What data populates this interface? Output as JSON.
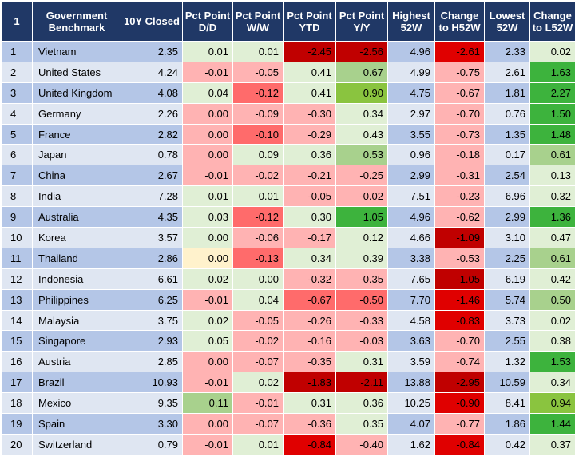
{
  "headers": [
    "1",
    "Government Benchmark",
    "10Y Closed",
    "Pct Point D/D",
    "Pct Point W/W",
    "Pct Point YTD",
    "Pct Point Y/Y",
    "Highest 52W",
    "Change to H52W",
    "Lowest 52W",
    "Change to L52W"
  ],
  "colors": {
    "header_bg": "#203866",
    "row_odd": "#b4c6e7",
    "row_even": "#dfe6f2",
    "neg_light": "#ffb3b3",
    "neg_mid": "#ff6b6b",
    "neg_strong": "#e00000",
    "neg_dark": "#c00000",
    "pos_light": "#e0efd5",
    "pos_mid": "#a8d18d",
    "pos_strong": "#8ac43f",
    "pos_dark": "#3db33d",
    "neutral": "#fff2cc"
  },
  "rows": [
    {
      "idx": "1",
      "name": "Vietnam",
      "closed": "2.35",
      "dd": "0.01",
      "ww": "0.01",
      "ytd": "-2.45",
      "yy": "-2.56",
      "high": "4.96",
      "ch_h": "-2.61",
      "low": "2.33",
      "ch_l": "0.02"
    },
    {
      "idx": "2",
      "name": "United States",
      "closed": "4.24",
      "dd": "-0.01",
      "ww": "-0.05",
      "ytd": "0.41",
      "yy": "0.67",
      "high": "4.99",
      "ch_h": "-0.75",
      "low": "2.61",
      "ch_l": "1.63"
    },
    {
      "idx": "3",
      "name": "United Kingdom",
      "closed": "4.08",
      "dd": "0.04",
      "ww": "-0.12",
      "ytd": "0.41",
      "yy": "0.90",
      "high": "4.75",
      "ch_h": "-0.67",
      "low": "1.81",
      "ch_l": "2.27"
    },
    {
      "idx": "4",
      "name": "Germany",
      "closed": "2.26",
      "dd": "0.00",
      "ww": "-0.09",
      "ytd": "-0.30",
      "yy": "0.34",
      "high": "2.97",
      "ch_h": "-0.70",
      "low": "0.76",
      "ch_l": "1.50"
    },
    {
      "idx": "5",
      "name": "France",
      "closed": "2.82",
      "dd": "0.00",
      "ww": "-0.10",
      "ytd": "-0.29",
      "yy": "0.43",
      "high": "3.55",
      "ch_h": "-0.73",
      "low": "1.35",
      "ch_l": "1.48"
    },
    {
      "idx": "6",
      "name": "Japan",
      "closed": "0.78",
      "dd": "0.00",
      "ww": "0.09",
      "ytd": "0.36",
      "yy": "0.53",
      "high": "0.96",
      "ch_h": "-0.18",
      "low": "0.17",
      "ch_l": "0.61"
    },
    {
      "idx": "7",
      "name": "China",
      "closed": "2.67",
      "dd": "-0.01",
      "ww": "-0.02",
      "ytd": "-0.21",
      "yy": "-0.25",
      "high": "2.99",
      "ch_h": "-0.31",
      "low": "2.54",
      "ch_l": "0.13"
    },
    {
      "idx": "8",
      "name": "India",
      "closed": "7.28",
      "dd": "0.01",
      "ww": "0.01",
      "ytd": "-0.05",
      "yy": "-0.02",
      "high": "7.51",
      "ch_h": "-0.23",
      "low": "6.96",
      "ch_l": "0.32"
    },
    {
      "idx": "9",
      "name": "Australia",
      "closed": "4.35",
      "dd": "0.03",
      "ww": "-0.12",
      "ytd": "0.30",
      "yy": "1.05",
      "high": "4.96",
      "ch_h": "-0.62",
      "low": "2.99",
      "ch_l": "1.36"
    },
    {
      "idx": "10",
      "name": "Korea",
      "closed": "3.57",
      "dd": "0.00",
      "ww": "-0.06",
      "ytd": "-0.17",
      "yy": "0.12",
      "high": "4.66",
      "ch_h": "-1.09",
      "low": "3.10",
      "ch_l": "0.47"
    },
    {
      "idx": "11",
      "name": "Thailand",
      "closed": "2.86",
      "dd": "0.00",
      "ww": "-0.13",
      "ytd": "0.34",
      "yy": "0.39",
      "high": "3.38",
      "ch_h": "-0.53",
      "low": "2.25",
      "ch_l": "0.61"
    },
    {
      "idx": "12",
      "name": "Indonesia",
      "closed": "6.61",
      "dd": "0.02",
      "ww": "0.00",
      "ytd": "-0.32",
      "yy": "-0.35",
      "high": "7.65",
      "ch_h": "-1.05",
      "low": "6.19",
      "ch_l": "0.42"
    },
    {
      "idx": "13",
      "name": "Philippines",
      "closed": "6.25",
      "dd": "-0.01",
      "ww": "0.04",
      "ytd": "-0.67",
      "yy": "-0.50",
      "high": "7.70",
      "ch_h": "-1.46",
      "low": "5.74",
      "ch_l": "0.50"
    },
    {
      "idx": "14",
      "name": "Malaysia",
      "closed": "3.75",
      "dd": "0.02",
      "ww": "-0.05",
      "ytd": "-0.26",
      "yy": "-0.33",
      "high": "4.58",
      "ch_h": "-0.83",
      "low": "3.73",
      "ch_l": "0.02"
    },
    {
      "idx": "15",
      "name": "Singapore",
      "closed": "2.93",
      "dd": "0.05",
      "ww": "-0.02",
      "ytd": "-0.16",
      "yy": "-0.03",
      "high": "3.63",
      "ch_h": "-0.70",
      "low": "2.55",
      "ch_l": "0.38"
    },
    {
      "idx": "16",
      "name": "Austria",
      "closed": "2.85",
      "dd": "0.00",
      "ww": "-0.07",
      "ytd": "-0.35",
      "yy": "0.31",
      "high": "3.59",
      "ch_h": "-0.74",
      "low": "1.32",
      "ch_l": "1.53"
    },
    {
      "idx": "17",
      "name": "Brazil",
      "closed": "10.93",
      "dd": "-0.01",
      "ww": "0.02",
      "ytd": "-1.83",
      "yy": "-2.11",
      "high": "13.88",
      "ch_h": "-2.95",
      "low": "10.59",
      "ch_l": "0.34"
    },
    {
      "idx": "18",
      "name": "Mexico",
      "closed": "9.35",
      "dd": "0.11",
      "ww": "-0.01",
      "ytd": "0.31",
      "yy": "0.36",
      "high": "10.25",
      "ch_h": "-0.90",
      "low": "8.41",
      "ch_l": "0.94"
    },
    {
      "idx": "19",
      "name": "Spain",
      "closed": "3.30",
      "dd": "0.00",
      "ww": "-0.07",
      "ytd": "-0.36",
      "yy": "0.35",
      "high": "4.07",
      "ch_h": "-0.77",
      "low": "1.86",
      "ch_l": "1.44"
    },
    {
      "idx": "20",
      "name": "Switzerland",
      "closed": "0.79",
      "dd": "-0.01",
      "ww": "0.01",
      "ytd": "-0.84",
      "yy": "-0.40",
      "high": "1.62",
      "ch_h": "-0.84",
      "low": "0.42",
      "ch_l": "0.37"
    }
  ],
  "highlights": {
    "0": {
      "dd": "pos_light",
      "ww": "pos_light",
      "ytd": "neg_dark",
      "yy": "neg_dark",
      "ch_h": "neg_strong",
      "ch_l": "pos_light"
    },
    "1": {
      "dd": "neg_light",
      "ww": "neg_light",
      "ytd": "pos_light",
      "yy": "pos_mid",
      "ch_h": "neg_light",
      "ch_l": "pos_dark"
    },
    "2": {
      "dd": "pos_light",
      "ww": "neg_mid",
      "ytd": "pos_light",
      "yy": "pos_strong",
      "ch_h": "neg_light",
      "ch_l": "pos_dark"
    },
    "3": {
      "dd": "neg_light",
      "ww": "neg_light",
      "ytd": "neg_light",
      "yy": "pos_light",
      "ch_h": "neg_light",
      "ch_l": "pos_dark"
    },
    "4": {
      "dd": "neg_light",
      "ww": "neg_mid",
      "ytd": "neg_light",
      "yy": "pos_light",
      "ch_h": "neg_light",
      "ch_l": "pos_dark"
    },
    "5": {
      "dd": "neg_light",
      "ww": "pos_light",
      "ytd": "pos_light",
      "yy": "pos_mid",
      "ch_h": "neg_light",
      "ch_l": "pos_mid"
    },
    "6": {
      "dd": "neg_light",
      "ww": "neg_light",
      "ytd": "neg_light",
      "yy": "neg_light",
      "ch_h": "neg_light",
      "ch_l": "pos_light"
    },
    "7": {
      "dd": "pos_light",
      "ww": "pos_light",
      "ytd": "neg_light",
      "yy": "neg_light",
      "ch_h": "neg_light",
      "ch_l": "pos_light"
    },
    "8": {
      "dd": "pos_light",
      "ww": "neg_mid",
      "ytd": "pos_light",
      "yy": "pos_dark",
      "ch_h": "neg_light",
      "ch_l": "pos_dark"
    },
    "9": {
      "dd": "pos_light",
      "ww": "neg_light",
      "ytd": "neg_light",
      "yy": "pos_light",
      "ch_h": "neg_dark",
      "ch_l": "pos_light"
    },
    "10": {
      "dd": "neutral",
      "ww": "neg_mid",
      "ytd": "pos_light",
      "yy": "pos_light",
      "ch_h": "neg_light",
      "ch_l": "pos_mid"
    },
    "11": {
      "dd": "pos_light",
      "ww": "pos_light",
      "ytd": "neg_light",
      "yy": "neg_light",
      "ch_h": "neg_dark",
      "ch_l": "pos_light"
    },
    "12": {
      "dd": "neg_light",
      "ww": "pos_light",
      "ytd": "neg_mid",
      "yy": "neg_mid",
      "ch_h": "neg_strong",
      "ch_l": "pos_mid"
    },
    "13": {
      "dd": "pos_light",
      "ww": "neg_light",
      "ytd": "neg_light",
      "yy": "neg_light",
      "ch_h": "neg_strong",
      "ch_l": "pos_light"
    },
    "14": {
      "dd": "pos_light",
      "ww": "neg_light",
      "ytd": "neg_light",
      "yy": "neg_light",
      "ch_h": "neg_light",
      "ch_l": "pos_light"
    },
    "15": {
      "dd": "neg_light",
      "ww": "neg_light",
      "ytd": "neg_light",
      "yy": "pos_light",
      "ch_h": "neg_light",
      "ch_l": "pos_dark"
    },
    "16": {
      "dd": "neg_light",
      "ww": "pos_light",
      "ytd": "neg_dark",
      "yy": "neg_dark",
      "ch_h": "neg_dark",
      "ch_l": "pos_light"
    },
    "17": {
      "dd": "pos_mid",
      "ww": "neg_light",
      "ytd": "pos_light",
      "yy": "pos_light",
      "ch_h": "neg_strong",
      "ch_l": "pos_strong"
    },
    "18": {
      "dd": "neg_light",
      "ww": "neg_light",
      "ytd": "neg_light",
      "yy": "pos_light",
      "ch_h": "neg_light",
      "ch_l": "pos_dark"
    },
    "19": {
      "dd": "neg_light",
      "ww": "pos_light",
      "ytd": "neg_strong",
      "yy": "neg_light",
      "ch_h": "neg_strong",
      "ch_l": "pos_light"
    }
  }
}
